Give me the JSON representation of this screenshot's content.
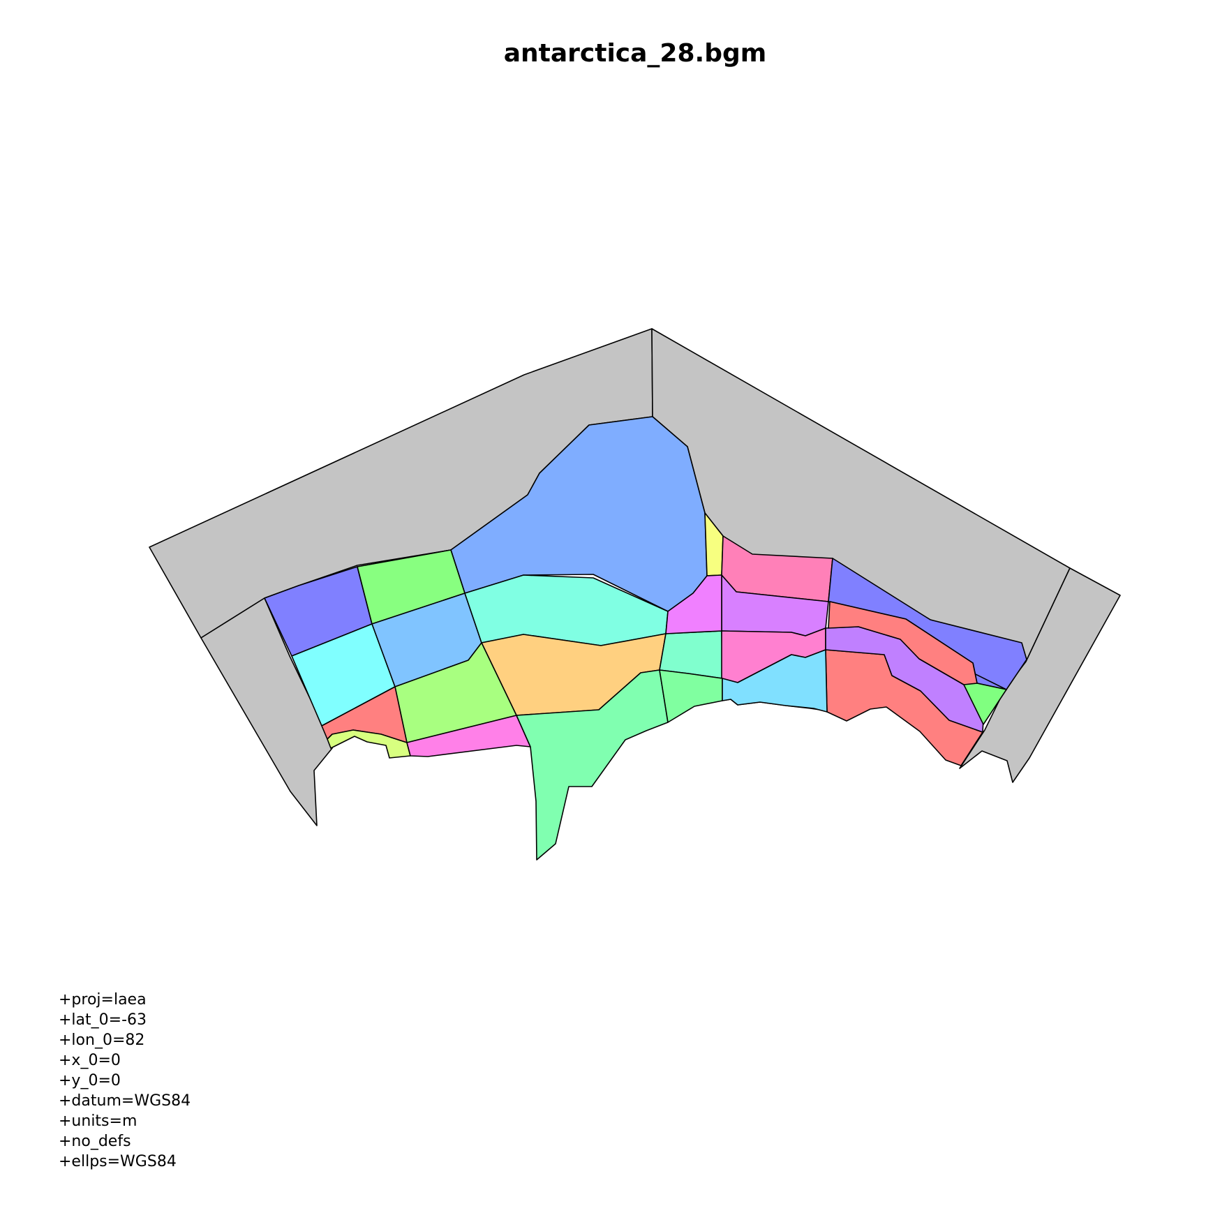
{
  "title": "antarctica_28.bgm",
  "map": {
    "projection": "laea",
    "boundary_color": "#c4c4c4",
    "outline_color": "#000000",
    "box_colors": [
      "#7fadff",
      "#f7ff80",
      "#ff80b8",
      "#8080ff",
      "#8080ff",
      "#80ff80",
      "#80e5ff",
      "#ff8080",
      "#8080ff",
      "#88ff80",
      "#80ffff",
      "#80c4ff",
      "#80ffe3",
      "#ffd080",
      "#a8ff80",
      "#ff8080",
      "#d8ff80",
      "#ff80e8",
      "#80ffb0",
      "#80ffce",
      "#d880ff",
      "#f080ff",
      "#ff80d0",
      "#80ffa0",
      "#c080ff",
      "#80e0ff",
      "#ff8080",
      "#80ff80"
    ]
  },
  "proj_lines": [
    "+proj=laea",
    "+lat_0=-63",
    "+lon_0=82",
    "+x_0=0",
    "+y_0=0",
    "+datum=WGS84",
    "+units=m",
    "+no_defs",
    "+ellps=WGS84"
  ]
}
